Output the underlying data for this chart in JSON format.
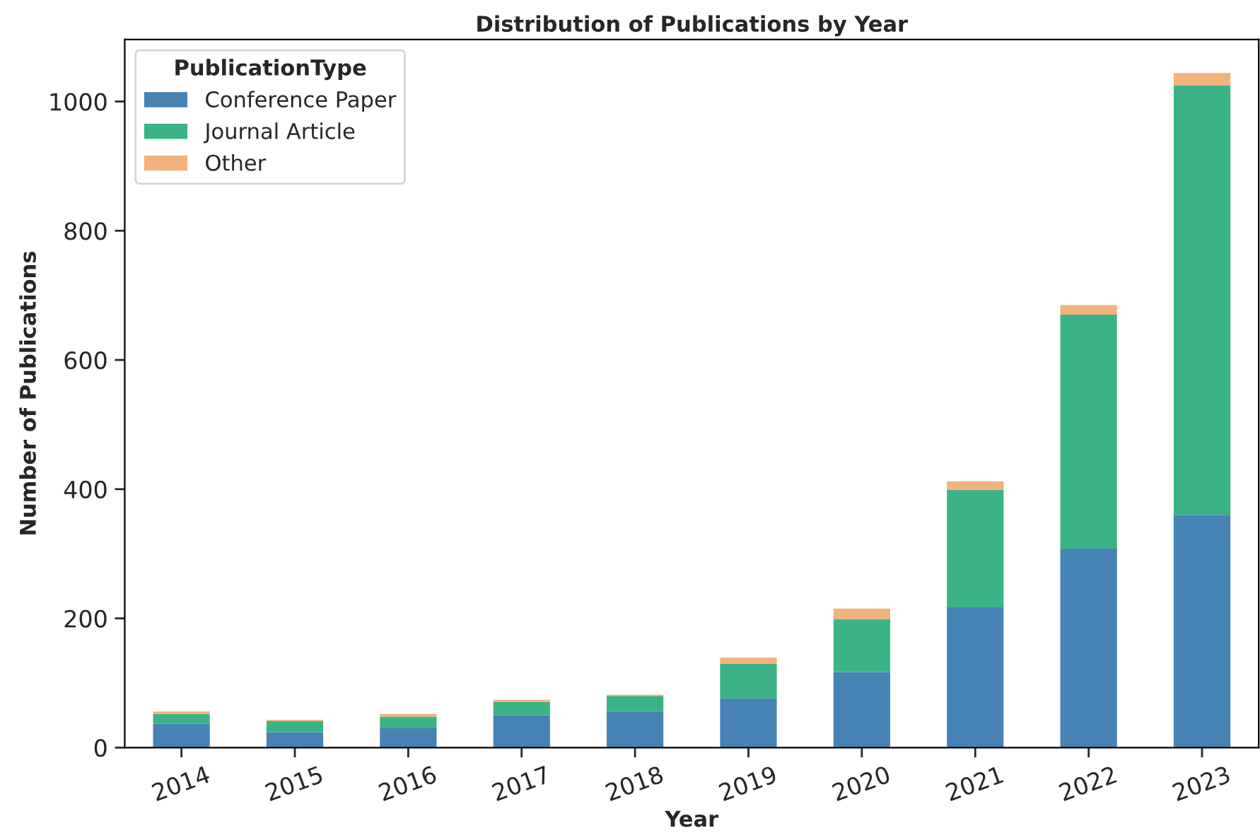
{
  "chart_data": {
    "type": "bar",
    "stacked": true,
    "title": "Distribution of Publications by Year",
    "xlabel": "Year",
    "ylabel": "Number of Publications",
    "legend_title": "PublicationType",
    "legend": "top left",
    "categories": [
      "2014",
      "2015",
      "2016",
      "2017",
      "2018",
      "2019",
      "2020",
      "2021",
      "2022",
      "2023"
    ],
    "series": [
      {
        "name": "Conference Paper",
        "color": "#4682b4",
        "values": [
          37,
          24,
          30,
          50,
          56,
          76,
          117,
          217,
          308,
          360
        ]
      },
      {
        "name": "Journal Article",
        "color": "#3bb386",
        "values": [
          15,
          17,
          18,
          21,
          24,
          54,
          82,
          182,
          362,
          665
        ]
      },
      {
        "name": "Other",
        "color": "#f0b27a",
        "values": [
          4,
          2,
          4,
          3,
          2,
          9,
          16,
          13,
          15,
          19
        ]
      }
    ],
    "ylim": [
      0,
      1096
    ],
    "yticks": [
      0,
      200,
      400,
      600,
      800,
      1000
    ],
    "grid": false
  }
}
